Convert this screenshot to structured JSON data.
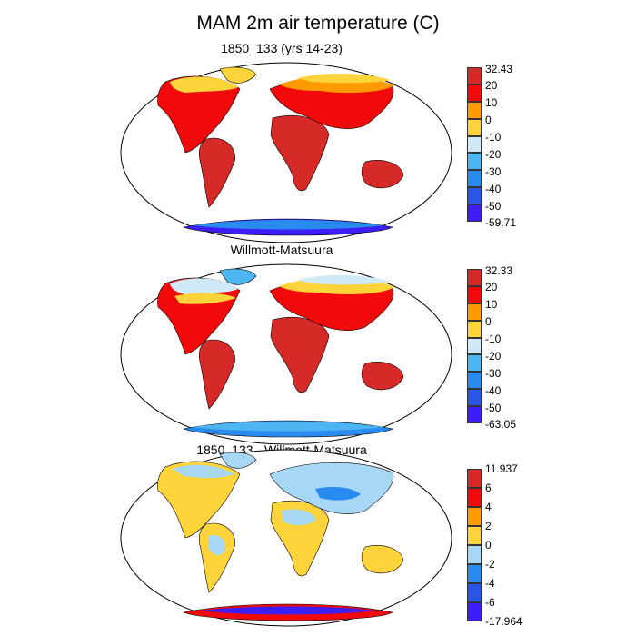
{
  "title": "MAM 2m air temperature (C)",
  "panels": [
    {
      "title": "1850_133 (yrs 14-23)",
      "colorbar": {
        "labels": [
          "32.43",
          "20",
          "10",
          "0",
          "-10",
          "-20",
          "-30",
          "-40",
          "-50",
          "-59.71"
        ],
        "colors": [
          "#d62a28",
          "#f20a0a",
          "#ff9a00",
          "#ffd33a",
          "#cfe9f6",
          "#4eb5f3",
          "#2a8bef",
          "#2b55e7",
          "#3d1ef6"
        ]
      }
    },
    {
      "title": "Willmott-Matsuura",
      "colorbar": {
        "labels": [
          "32.33",
          "20",
          "10",
          "0",
          "-10",
          "-20",
          "-30",
          "-40",
          "-50",
          "-63.05"
        ],
        "colors": [
          "#d62a28",
          "#f20a0a",
          "#ff9a00",
          "#ffd33a",
          "#cfe9f6",
          "#4eb5f3",
          "#2a8bef",
          "#2b55e7",
          "#3d1ef6"
        ]
      }
    },
    {
      "title": "1850_133 - Willmott-Matsuura",
      "colorbar": {
        "labels": [
          "11.937",
          "6",
          "4",
          "2",
          "0",
          "-2",
          "-4",
          "-6",
          "-17.964"
        ],
        "colors": [
          "#d62a28",
          "#f20a0a",
          "#ff9a00",
          "#ffd33a",
          "#a6d7f4",
          "#2a8bef",
          "#2b55e7",
          "#3d1ef6"
        ]
      }
    }
  ]
}
